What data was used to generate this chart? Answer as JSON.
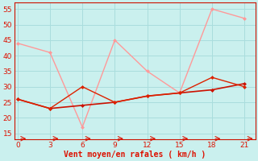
{
  "x": [
    0,
    3,
    6,
    9,
    12,
    15,
    18,
    21
  ],
  "line_mean_y": [
    26,
    23,
    24,
    25,
    27,
    28,
    29,
    31
  ],
  "line_mid_y": [
    26,
    23,
    30,
    25,
    27,
    28,
    33,
    30
  ],
  "line_gust_y": [
    44,
    41,
    17,
    45,
    35,
    28,
    55,
    52
  ],
  "line_mean_color": "#cc1100",
  "line_mid_color": "#dd2200",
  "line_gust_color": "#ff9999",
  "bg_color": "#caf0ee",
  "grid_color": "#aadddd",
  "xlabel": "Vent moyen/en rafales ( km/h )",
  "xlabel_color": "#dd1100",
  "tick_label_color": "#dd1100",
  "spine_color": "#cc1100",
  "ylim": [
    13,
    57
  ],
  "yticks": [
    15,
    20,
    25,
    30,
    35,
    40,
    45,
    50,
    55
  ],
  "xlim": [
    -0.3,
    22
  ],
  "xticks": [
    0,
    3,
    6,
    9,
    12,
    15,
    18,
    21
  ]
}
